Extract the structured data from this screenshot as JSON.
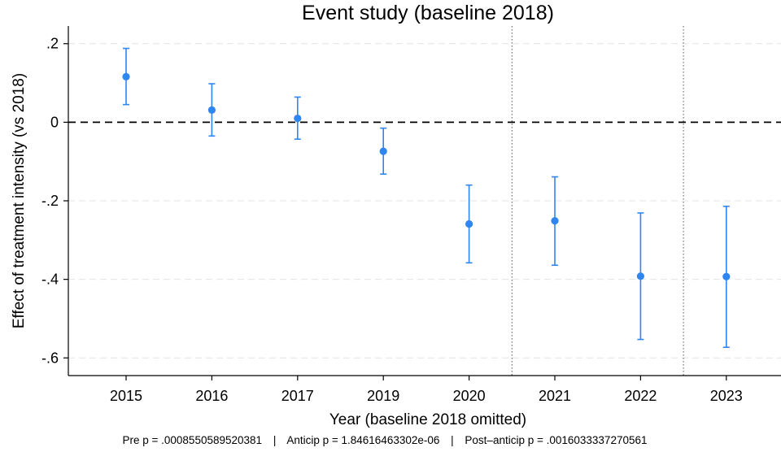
{
  "chart_data": {
    "type": "scatter",
    "title": "Event study (baseline 2018)",
    "xlabel": "Year (baseline 2018 omitted)",
    "ylabel": "Effect of treatment intensity (vs 2018)",
    "categories": [
      "2015",
      "2016",
      "2017",
      "2019",
      "2020",
      "2021",
      "2022",
      "2023"
    ],
    "series": [
      {
        "estimate": [
          0.116,
          0.031,
          0.01,
          -0.074,
          -0.259,
          -0.251,
          -0.392,
          -0.393
        ],
        "ci_low": [
          0.045,
          -0.035,
          -0.043,
          -0.132,
          -0.358,
          -0.364,
          -0.553,
          -0.573
        ],
        "ci_high": [
          0.188,
          0.098,
          0.064,
          -0.015,
          -0.16,
          -0.139,
          -0.231,
          -0.214
        ],
        "color": "#2f86f0"
      }
    ],
    "ylim": [
      -0.645,
      0.245
    ],
    "y_ticks": [
      0.2,
      0,
      -0.2,
      -0.4,
      -0.6
    ],
    "y_tick_labels": [
      ".2",
      "0",
      "-.2",
      "-.4",
      "-.6"
    ],
    "reference_line_y": 0,
    "vertical_lines_between": [
      [
        "2020",
        "2021"
      ],
      [
        "2022",
        "2023"
      ]
    ],
    "grid": "horizontal, light dashed",
    "legend": "none",
    "footnote": {
      "pre": "Pre p = .0008550589520381",
      "sep1": "|",
      "anticip": "Anticip p = 1.84616463302e-06",
      "sep2": "|",
      "post": "Post–anticip p = .0016033337270561"
    }
  }
}
